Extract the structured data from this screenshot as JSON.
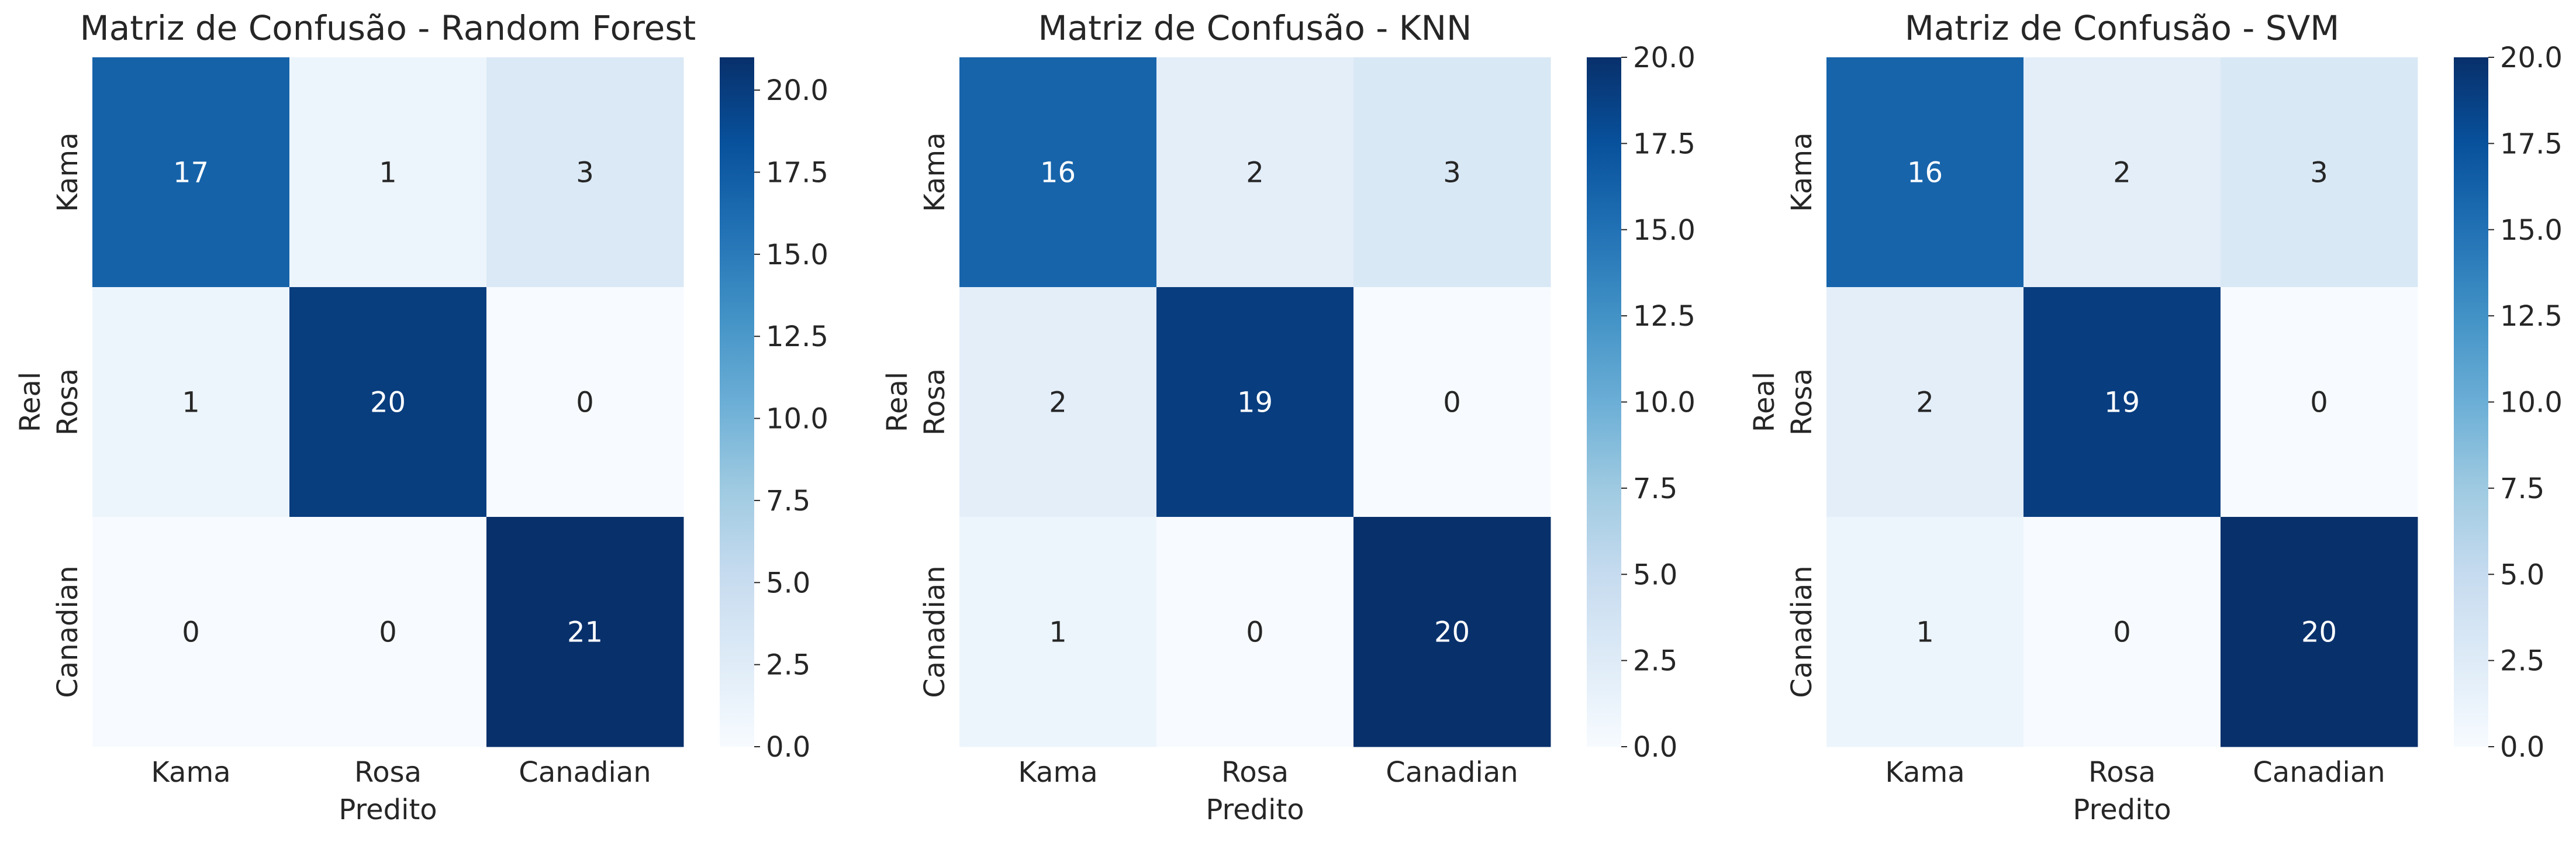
{
  "chart_data": [
    {
      "type": "heatmap",
      "title": "Matriz de Confusão - Random Forest",
      "xlabel": "Predito",
      "ylabel": "Real",
      "x_categories": [
        "Kama",
        "Rosa",
        "Canadian"
      ],
      "y_categories": [
        "Kama",
        "Rosa",
        "Canadian"
      ],
      "values": [
        [
          17,
          1,
          3
        ],
        [
          1,
          20,
          0
        ],
        [
          0,
          0,
          21
        ]
      ],
      "colormap": "Blues",
      "vmin": 0,
      "vmax": 21,
      "colorbar_ticks": [
        "0.0",
        "2.5",
        "5.0",
        "7.5",
        "10.0",
        "12.5",
        "15.0",
        "17.5",
        "20.0"
      ]
    },
    {
      "type": "heatmap",
      "title": "Matriz de Confusão - KNN",
      "xlabel": "Predito",
      "ylabel": "Real",
      "x_categories": [
        "Kama",
        "Rosa",
        "Canadian"
      ],
      "y_categories": [
        "Kama",
        "Rosa",
        "Canadian"
      ],
      "values": [
        [
          16,
          2,
          3
        ],
        [
          2,
          19,
          0
        ],
        [
          1,
          0,
          20
        ]
      ],
      "colormap": "Blues",
      "vmin": 0,
      "vmax": 20,
      "colorbar_ticks": [
        "0.0",
        "2.5",
        "5.0",
        "7.5",
        "10.0",
        "12.5",
        "15.0",
        "17.5",
        "20.0"
      ]
    },
    {
      "type": "heatmap",
      "title": "Matriz de Confusão - SVM",
      "xlabel": "Predito",
      "ylabel": "Real",
      "x_categories": [
        "Kama",
        "Rosa",
        "Canadian"
      ],
      "y_categories": [
        "Kama",
        "Rosa",
        "Canadian"
      ],
      "values": [
        [
          16,
          2,
          3
        ],
        [
          2,
          19,
          0
        ],
        [
          1,
          0,
          20
        ]
      ],
      "colormap": "Blues",
      "vmin": 0,
      "vmax": 20,
      "colorbar_ticks": [
        "0.0",
        "2.5",
        "5.0",
        "7.5",
        "10.0",
        "12.5",
        "15.0",
        "17.5",
        "20.0"
      ]
    }
  ]
}
